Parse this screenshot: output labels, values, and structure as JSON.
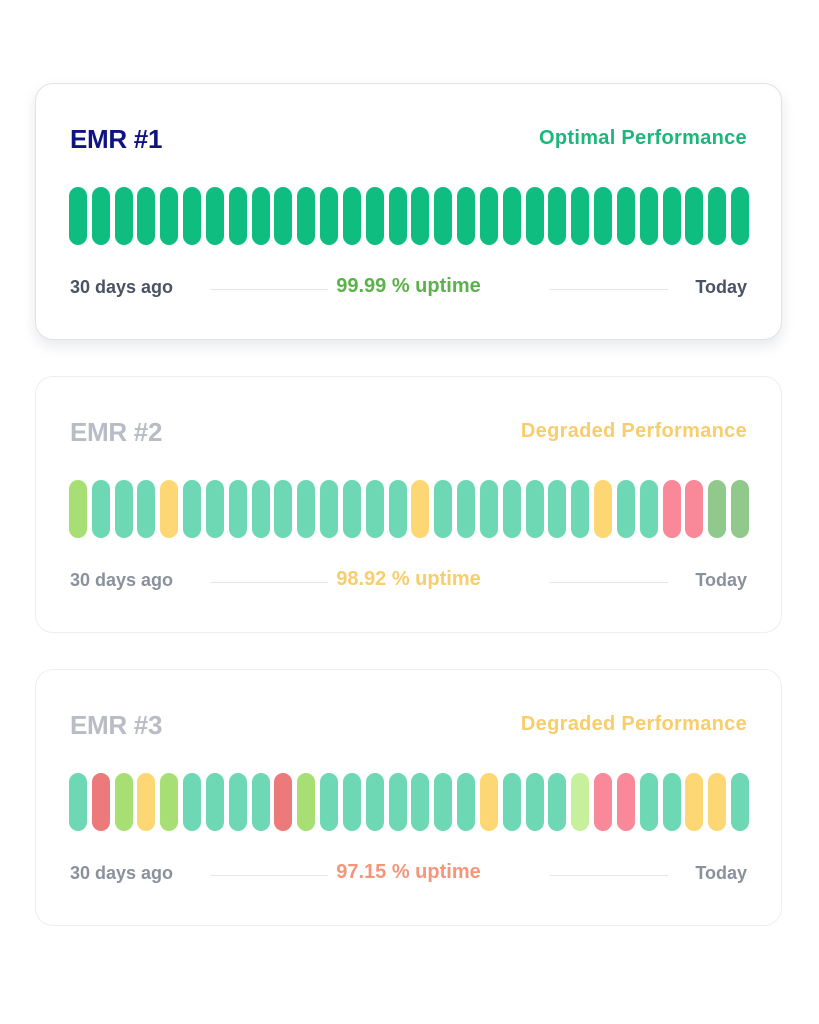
{
  "cards": [
    {
      "title": "EMR #1",
      "status": "Optimal Performance",
      "uptime": "99.99 % uptime",
      "start_label": "30 days ago",
      "end_label": "Today",
      "colors": {
        "title": "#0f1480",
        "status": "#1db67c",
        "uptime": "#5bb24a",
        "footer": "#4a5363"
      },
      "bars": [
        "g",
        "g",
        "g",
        "g",
        "g",
        "g",
        "g",
        "g",
        "g",
        "g",
        "g",
        "g",
        "g",
        "g",
        "g",
        "g",
        "g",
        "g",
        "g",
        "g",
        "g",
        "g",
        "g",
        "g",
        "g",
        "g",
        "g",
        "g",
        "g",
        "g"
      ]
    },
    {
      "title": "EMR #2",
      "status": "Degraded Performance",
      "uptime": "98.92 % uptime",
      "start_label": "30 days ago",
      "end_label": "Today",
      "colors": {
        "title": "#b9bcc4",
        "status": "#f8cd6b",
        "uptime": "#f8cd6b",
        "footer": "#8b919c"
      },
      "bars": [
        "lg",
        "t",
        "t",
        "t",
        "y",
        "t",
        "t",
        "t",
        "t",
        "t",
        "t",
        "t",
        "t",
        "t",
        "t",
        "y",
        "t",
        "t",
        "t",
        "t",
        "t",
        "t",
        "t",
        "y",
        "t",
        "t",
        "p",
        "p",
        "sg",
        "sg"
      ]
    },
    {
      "title": "EMR #3",
      "status": "Degraded Performance",
      "uptime": "97.15 % uptime",
      "start_label": "30 days ago",
      "end_label": "Today",
      "colors": {
        "title": "#b9bcc4",
        "status": "#f8cd6b",
        "uptime": "#f5957a",
        "footer": "#8b919c"
      },
      "bars": [
        "t",
        "r",
        "lg",
        "y",
        "lg",
        "t",
        "t",
        "t",
        "t",
        "r",
        "lg",
        "t",
        "t",
        "t",
        "t",
        "t",
        "t",
        "t",
        "y",
        "t",
        "t",
        "t",
        "pl",
        "p",
        "p",
        "t",
        "t",
        "y",
        "y",
        "t"
      ]
    }
  ],
  "palette": {
    "g": "#10bd81",
    "t": "#6dd8b3",
    "y": "#fdd773",
    "lg": "#a7df75",
    "pl": "#c7f09c",
    "p": "#f98898",
    "r": "#ec7a7a",
    "sg": "#90c98b"
  }
}
